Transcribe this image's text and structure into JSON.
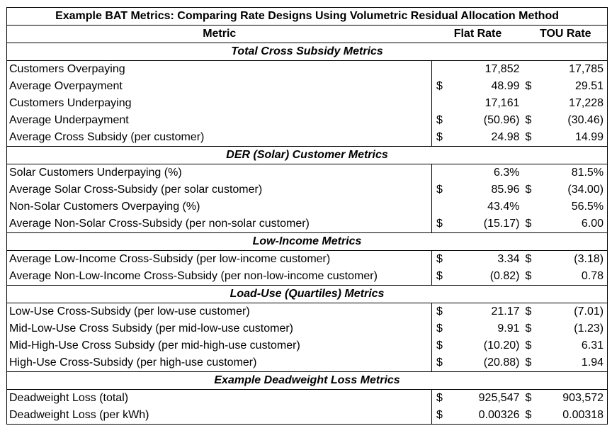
{
  "title": "Example BAT Metrics: Comparing Rate Designs Using Volumetric Residual Allocation Method",
  "headers": {
    "metric": "Metric",
    "flat": "Flat Rate",
    "tou": "TOU Rate"
  },
  "sections": [
    {
      "title": "Total Cross Subsidy Metrics",
      "rows": [
        {
          "metric": "Customers Overpaying",
          "d1": "",
          "v1": "17,852",
          "d2": "",
          "v2": "17,785"
        },
        {
          "metric": "Average Overpayment",
          "d1": "$",
          "v1": "48.99",
          "d2": "$",
          "v2": "29.51"
        },
        {
          "metric": "Customers Underpaying",
          "d1": "",
          "v1": "17,161",
          "d2": "",
          "v2": "17,228"
        },
        {
          "metric": "Average Underpayment",
          "d1": "$",
          "v1": "(50.96)",
          "d2": "$",
          "v2": "(30.46)"
        },
        {
          "metric": "Average Cross Subsidy (per customer)",
          "d1": "$",
          "v1": "24.98",
          "d2": "$",
          "v2": "14.99"
        }
      ]
    },
    {
      "title": "DER (Solar) Customer Metrics",
      "rows": [
        {
          "metric": "Solar Customers Underpaying (%)",
          "d1": "",
          "v1": "6.3%",
          "d2": "",
          "v2": "81.5%"
        },
        {
          "metric": "Average Solar Cross-Subsidy (per solar customer)",
          "d1": "$",
          "v1": "85.96",
          "d2": "$",
          "v2": "(34.00)"
        },
        {
          "metric": "Non-Solar Customers Overpaying (%)",
          "d1": "",
          "v1": "43.4%",
          "d2": "",
          "v2": "56.5%"
        },
        {
          "metric": "Average Non-Solar Cross-Subsidy (per non-solar customer)",
          "d1": "$",
          "v1": "(15.17)",
          "d2": "$",
          "v2": "6.00"
        }
      ]
    },
    {
      "title": "Low-Income Metrics",
      "rows": [
        {
          "metric": "Average Low-Income Cross-Subsidy (per low-income customer)",
          "d1": "$",
          "v1": "3.34",
          "d2": "$",
          "v2": "(3.18)"
        },
        {
          "metric": "Average Non-Low-Income Cross-Subsidy (per non-low-income customer)",
          "d1": "$",
          "v1": "(0.82)",
          "d2": "$",
          "v2": "0.78"
        }
      ]
    },
    {
      "title": "Load-Use (Quartiles) Metrics",
      "rows": [
        {
          "metric": "Low-Use Cross-Subsidy (per low-use customer)",
          "d1": "$",
          "v1": "21.17",
          "d2": "$",
          "v2": "(7.01)"
        },
        {
          "metric": "Mid-Low-Use Cross Subsidy (per mid-low-use customer)",
          "d1": "$",
          "v1": "9.91",
          "d2": "$",
          "v2": "(1.23)"
        },
        {
          "metric": "Mid-High-Use Cross Subsidy (per mid-high-use customer)",
          "d1": "$",
          "v1": "(10.20)",
          "d2": "$",
          "v2": "6.31"
        },
        {
          "metric": "High-Use Cross-Subsidy (per high-use customer)",
          "d1": "$",
          "v1": "(20.88)",
          "d2": "$",
          "v2": "1.94"
        }
      ]
    },
    {
      "title": "Example Deadweight Loss Metrics",
      "rows": [
        {
          "metric": "Deadweight Loss (total)",
          "d1": "$",
          "v1": "925,547",
          "d2": "$",
          "v2": "903,572"
        },
        {
          "metric": "Deadweight Loss (per kWh)",
          "d1": "$",
          "v1": "0.00326",
          "d2": "$",
          "v2": "0.00318"
        }
      ]
    }
  ]
}
